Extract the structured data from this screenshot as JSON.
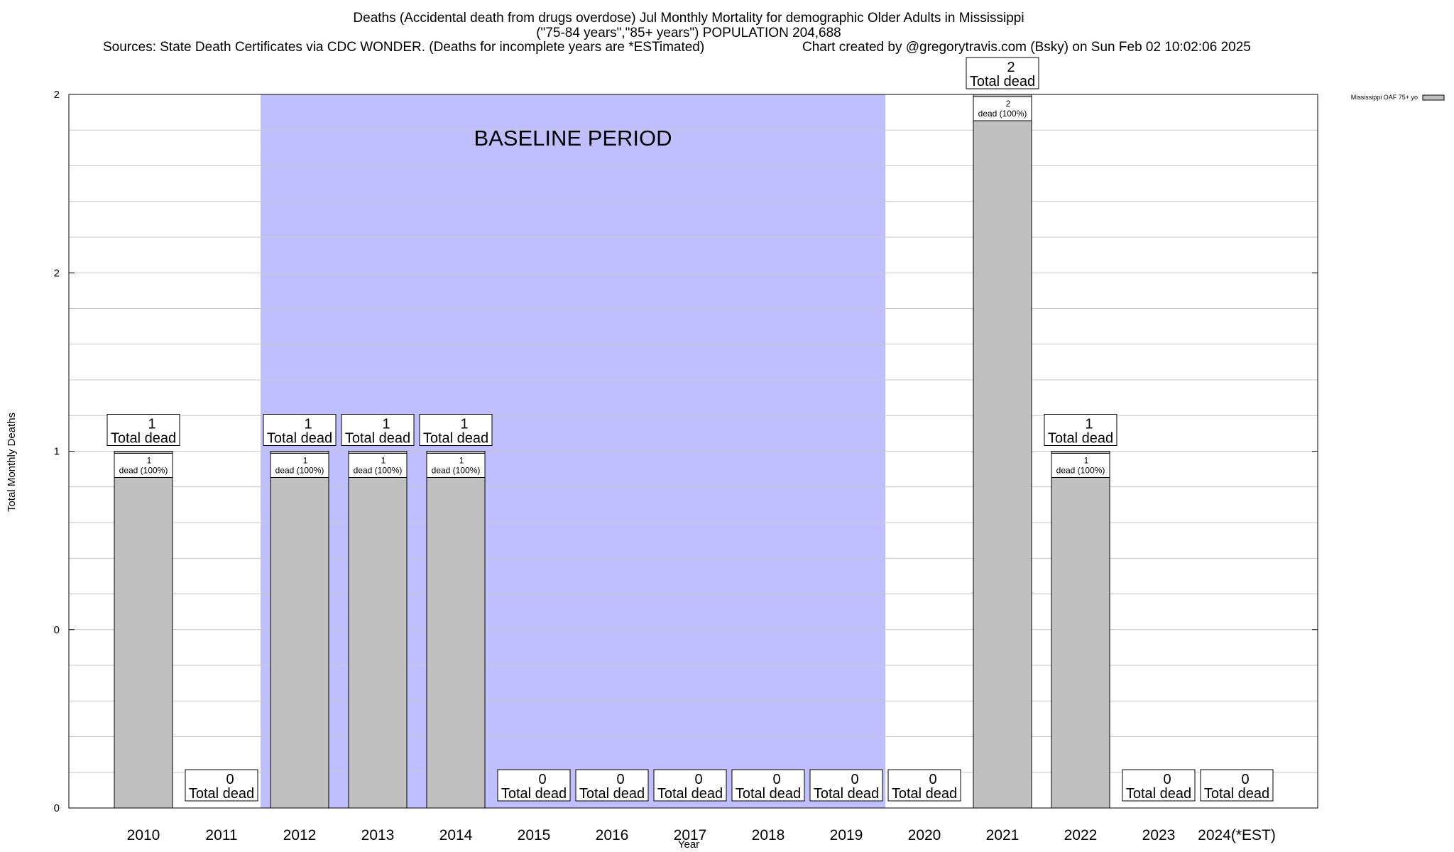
{
  "chart_data": {
    "type": "bar",
    "title": "Deaths (Accidental death from drugs overdose) Jul Monthly Mortality for demographic Older Adults in Mississippi",
    "subtitle": "(\"75-84 years\",\"85+ years\") POPULATION 204,688",
    "sources": "Sources: State Death Certificates via CDC WONDER. (Deaths for incomplete years are *ESTimated)",
    "credit": "Chart created by @gregorytravis.com (Bsky) on Sun Feb 02 10:02:06 2025",
    "xlabel": "Year",
    "ylabel": "Total Monthly Deaths",
    "ylim": [
      0,
      2
    ],
    "y_tick_labels": [
      "0",
      "0",
      "1",
      "2",
      "2"
    ],
    "categories": [
      "2010",
      "2011",
      "2012",
      "2013",
      "2014",
      "2015",
      "2016",
      "2017",
      "2018",
      "2019",
      "2020",
      "2021",
      "2022",
      "2023",
      "2024(*EST)"
    ],
    "series": [
      {
        "name": "Mississippi OAF 75+ yo",
        "color": "#c0c0c0",
        "values": [
          1,
          0,
          1,
          1,
          1,
          0,
          0,
          0,
          0,
          0,
          0,
          2,
          1,
          0,
          0
        ]
      }
    ],
    "bar_labels": [
      "1",
      "",
      "1",
      "1",
      "1",
      "",
      "",
      "",
      "",
      "",
      "",
      "2",
      "1",
      "",
      ""
    ],
    "bar_sublabels": [
      "dead (100%)",
      "",
      "dead (100%)",
      "dead (100%)",
      "dead (100%)",
      "",
      "",
      "",
      "",
      "",
      "",
      "dead (100%)",
      "dead (100%)",
      "",
      ""
    ],
    "total_counts": [
      "1",
      "0",
      "1",
      "1",
      "1",
      "0",
      "0",
      "0",
      "0",
      "0",
      "0",
      "2",
      "1",
      "0",
      "0"
    ],
    "total_label": "Total dead",
    "baseline": {
      "label": "BASELINE PERIOD",
      "from": "2012",
      "to": "2019",
      "color": "#bfbfff"
    },
    "legend": {
      "position": "top-right",
      "label": "Mississippi OAF 75+ yo"
    },
    "grid": true
  }
}
